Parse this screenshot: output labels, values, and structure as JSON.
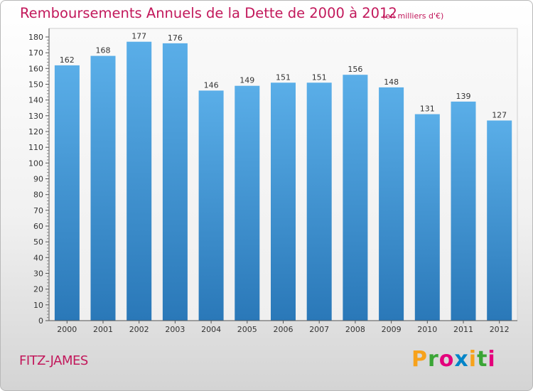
{
  "chart_data": {
    "type": "bar",
    "title": "Remboursements Annuels de la Dette de 2000 à 2012",
    "subtitle": "(en milliers d'€)",
    "categories": [
      "2000",
      "2001",
      "2002",
      "2003",
      "2004",
      "2005",
      "2006",
      "2007",
      "2008",
      "2009",
      "2010",
      "2011",
      "2012"
    ],
    "values": [
      162,
      168,
      177,
      176,
      146,
      149,
      151,
      151,
      156,
      148,
      131,
      139,
      127
    ],
    "ylim": [
      0,
      180
    ],
    "yticks": [
      0,
      10,
      20,
      30,
      40,
      50,
      60,
      70,
      80,
      90,
      100,
      110,
      120,
      130,
      140,
      150,
      160,
      170,
      180
    ],
    "grid": false,
    "xlabel": "",
    "ylabel": "",
    "bar_color_top": "#5aaee8",
    "bar_color_bottom": "#2a78b8"
  },
  "commune": "FITZ-JAMES",
  "logo": {
    "letters": [
      "P",
      "r",
      "o",
      "x",
      "i",
      "t",
      "i"
    ],
    "colors": [
      "#f7a21b",
      "#3aa535",
      "#e4007c",
      "#0084c8",
      "#f7a21b",
      "#3aa535",
      "#e4007c"
    ]
  },
  "colors": {
    "title": "#c2185b"
  }
}
